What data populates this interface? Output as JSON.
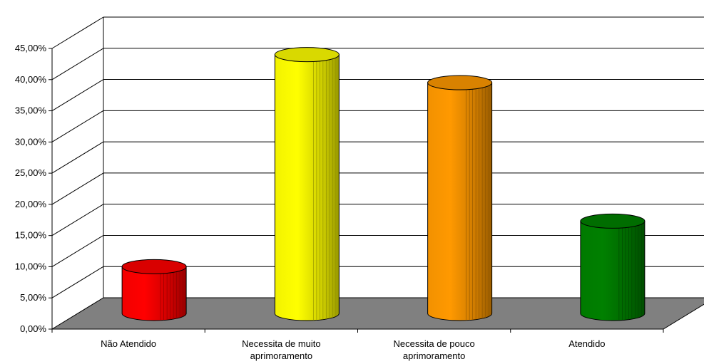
{
  "chart_data": {
    "type": "bar",
    "style": "3d-cylinder",
    "title": "",
    "xlabel": "",
    "ylabel": "",
    "ylim": [
      0,
      45
    ],
    "yticks": [
      "0,00%",
      "5,00%",
      "10,00%",
      "15,00%",
      "20,00%",
      "25,00%",
      "30,00%",
      "35,00%",
      "40,00%",
      "45,00%"
    ],
    "categories": [
      [
        "Não Atendido"
      ],
      [
        "Necessita de muito",
        "aprimoramento"
      ],
      [
        "Necessita de pouco",
        "aprimoramento"
      ],
      [
        "Atendido"
      ]
    ],
    "values": [
      7.5,
      41.5,
      37.0,
      14.8
    ],
    "grid": true,
    "legend": "none",
    "colors": {
      "bars": [
        "#ff0000",
        "#ffff00",
        "#ff9900",
        "#008000"
      ],
      "floor": "#808080",
      "grid": "#000000"
    }
  }
}
